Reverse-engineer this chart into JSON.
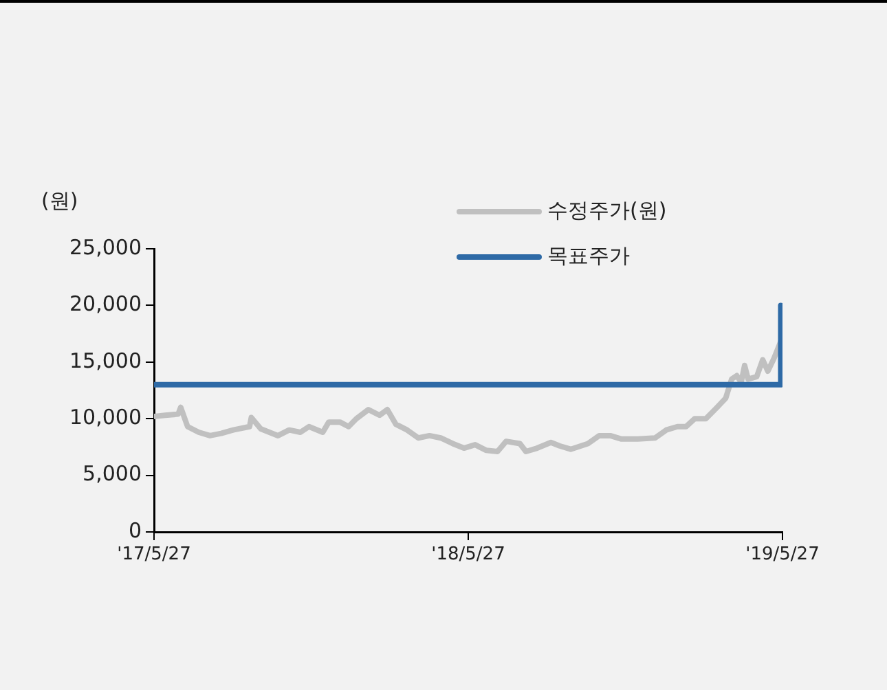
{
  "chart_data": {
    "type": "line",
    "ylabel": "(원)",
    "x": [
      "2017-05-27",
      "2017-06-09",
      "2017-06-24",
      "2017-06-27",
      "2017-07-05",
      "2017-07-18",
      "2017-07-31",
      "2017-08-13",
      "2017-08-27",
      "2017-09-15",
      "2017-09-17",
      "2017-09-28",
      "2017-10-18",
      "2017-10-31",
      "2017-11-13",
      "2017-11-23",
      "2017-12-09",
      "2017-12-16",
      "2017-12-29",
      "2018-01-08",
      "2018-01-17",
      "2018-01-31",
      "2018-02-13",
      "2018-02-22",
      "2018-03-04",
      "2018-03-17",
      "2018-03-30",
      "2018-04-12",
      "2018-04-25",
      "2018-05-09",
      "2018-05-22",
      "2018-06-04",
      "2018-06-17",
      "2018-06-30",
      "2018-07-10",
      "2018-07-26",
      "2018-08-02",
      "2018-08-15",
      "2018-08-31",
      "2018-09-10",
      "2018-09-23",
      "2018-10-13",
      "2018-10-26",
      "2018-11-08",
      "2018-11-21",
      "2018-12-10",
      "2018-12-30",
      "2019-01-12",
      "2019-01-25",
      "2019-02-04",
      "2019-02-14",
      "2019-02-27",
      "2019-03-12",
      "2019-03-22",
      "2019-03-29",
      "2019-04-04",
      "2019-04-09",
      "2019-04-13",
      "2019-04-17",
      "2019-04-27",
      "2019-05-04",
      "2019-05-10",
      "2019-05-17",
      "2019-05-27"
    ],
    "series": [
      {
        "name": "수정주가(원)",
        "color": "#c0c0c0",
        "values": [
          10200,
          10300,
          10400,
          11000,
          9300,
          8800,
          8500,
          8700,
          9000,
          9300,
          10100,
          9100,
          8500,
          9000,
          8800,
          9300,
          8800,
          9700,
          9700,
          9300,
          10000,
          10800,
          10300,
          10800,
          9500,
          9000,
          8300,
          8500,
          8300,
          7800,
          7400,
          7700,
          7200,
          7100,
          8000,
          7800,
          7100,
          7400,
          7900,
          7600,
          7300,
          7800,
          8500,
          8500,
          8200,
          8200,
          8300,
          9000,
          9300,
          9300,
          10000,
          10000,
          11000,
          11800,
          13500,
          13800,
          13200,
          14700,
          13500,
          13700,
          15200,
          14200,
          15300,
          17200
        ]
      },
      {
        "name": "목표주가",
        "color": "#2e6aa6",
        "x": [
          "2017-05-27",
          "2019-05-25",
          "2019-05-25"
        ],
        "values": [
          13000,
          13000,
          20000
        ]
      }
    ],
    "ylim": [
      0,
      25000
    ],
    "yticks": [
      0,
      {
        "value": 5000,
        "label": "5,000"
      },
      {
        "value": 10000,
        "label": "10,000"
      },
      {
        "value": 15000,
        "label": "15,000"
      },
      {
        "value": 20000,
        "label": "20,000"
      },
      {
        "value": 25000,
        "label": "25,000"
      }
    ],
    "xlim": [
      "2017-05-27",
      "2019-05-27"
    ],
    "xticks": [
      {
        "value": "2017-05-27",
        "label": "'17/5/27"
      },
      {
        "value": "2018-05-27",
        "label": "'18/5/27"
      },
      {
        "value": "2019-05-27",
        "label": "'19/5/27"
      }
    ],
    "grid": false,
    "legend": "top right",
    "marker": "none",
    "line_style": "solid"
  }
}
